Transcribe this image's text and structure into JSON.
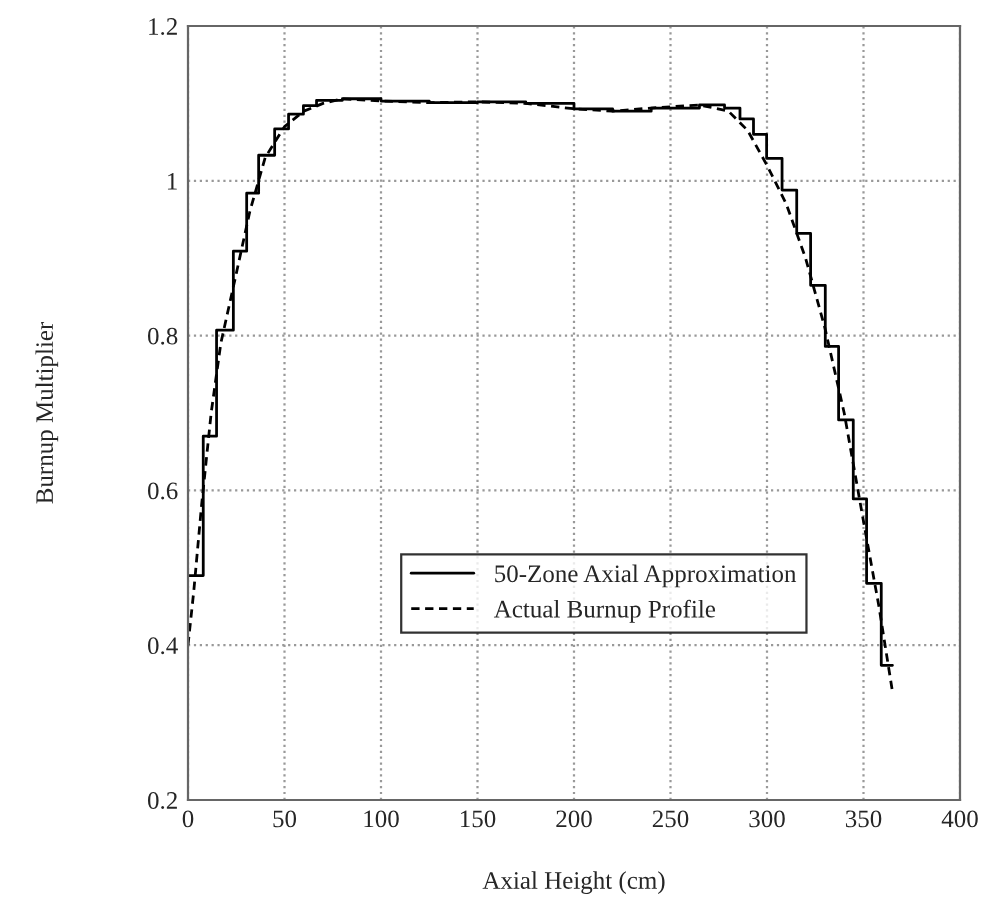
{
  "chart_data": {
    "type": "line",
    "xlabel": "Axial Height (cm)",
    "ylabel": "Burnup Multiplier",
    "series": [
      {
        "name": "50-Zone Axial Approximation",
        "type": "step",
        "color": "#000000",
        "line_style": "solid",
        "x": [
          0,
          7.9,
          14.8,
          23.5,
          30.4,
          36.6,
          44.9,
          52.1,
          59.8,
          66.6,
          80,
          100,
          125,
          150,
          175,
          200,
          220,
          240,
          265,
          278,
          286,
          293,
          299.8,
          307.8,
          315.4,
          322.6,
          330.2,
          337.1,
          344.7,
          351.6,
          359.2,
          365
        ],
        "values": [
          0.49,
          0.67,
          0.807,
          0.909,
          0.984,
          1.033,
          1.067,
          1.086,
          1.097,
          1.104,
          1.106,
          1.103,
          1.101,
          1.102,
          1.1,
          1.093,
          1.09,
          1.094,
          1.098,
          1.094,
          1.08,
          1.06,
          1.029,
          0.988,
          0.932,
          0.865,
          0.786,
          0.691,
          0.589,
          0.48,
          0.374,
          0.374
        ]
      },
      {
        "name": "Actual Burnup Profile",
        "color": "#000000",
        "line_style": "dashed",
        "x": [
          0,
          3,
          7,
          12,
          17,
          25,
          32,
          40,
          50,
          60,
          70,
          80,
          100,
          125,
          150,
          175,
          200,
          220,
          240,
          265,
          280,
          290,
          300,
          310,
          320,
          330,
          340,
          350,
          358,
          365
        ],
        "values": [
          0.4,
          0.47,
          0.58,
          0.7,
          0.79,
          0.88,
          0.96,
          1.03,
          1.07,
          1.09,
          1.1,
          1.106,
          1.103,
          1.101,
          1.102,
          1.1,
          1.093,
          1.09,
          1.094,
          1.098,
          1.09,
          1.065,
          1.02,
          0.97,
          0.9,
          0.81,
          0.7,
          0.56,
          0.45,
          0.34
        ]
      }
    ],
    "xlim": [
      0,
      400
    ],
    "ylim": [
      0.2,
      1.2
    ],
    "xticks": [
      0,
      50,
      100,
      150,
      200,
      250,
      300,
      350,
      400
    ],
    "yticks": [
      0.2,
      0.4,
      0.6,
      0.8,
      1,
      1.2
    ],
    "grid": true,
    "legend": "bottom center",
    "marker": "none"
  }
}
